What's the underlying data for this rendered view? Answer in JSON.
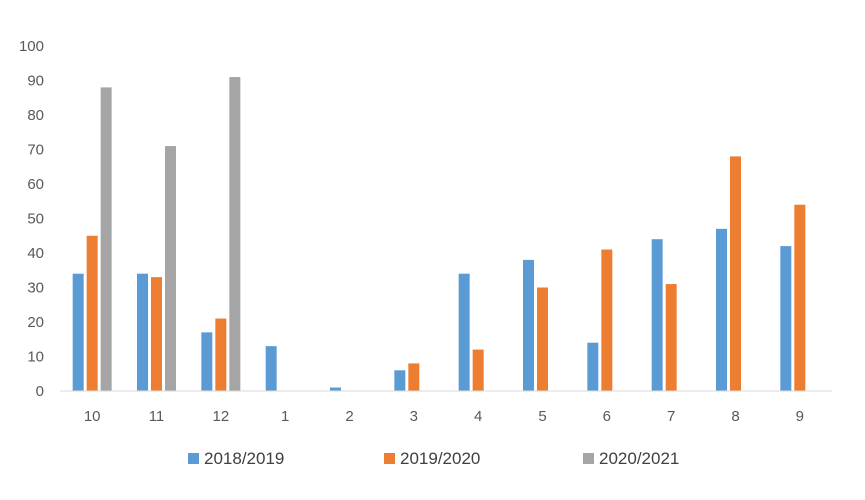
{
  "chart_data": {
    "type": "bar",
    "title": "",
    "xlabel": "",
    "ylabel": "",
    "categories": [
      "10",
      "11",
      "12",
      "1",
      "2",
      "3",
      "4",
      "5",
      "6",
      "7",
      "8",
      "9"
    ],
    "series": [
      {
        "name": "2018/2019",
        "color": "#5B9BD5",
        "values": [
          34,
          34,
          17,
          13,
          1,
          6,
          34,
          38,
          14,
          44,
          47,
          42
        ]
      },
      {
        "name": "2019/2020",
        "color": "#ED7D31",
        "values": [
          45,
          33,
          21,
          0,
          0,
          8,
          12,
          30,
          41,
          31,
          68,
          54
        ]
      },
      {
        "name": "2020/2021",
        "color": "#A5A5A5",
        "values": [
          88,
          71,
          91,
          null,
          null,
          null,
          null,
          null,
          null,
          null,
          null,
          null
        ]
      }
    ],
    "ylim": [
      0,
      100
    ],
    "yticks": [
      0,
      10,
      20,
      30,
      40,
      50,
      60,
      70,
      80,
      90,
      100
    ],
    "grid": false,
    "legend_position": "bottom"
  }
}
